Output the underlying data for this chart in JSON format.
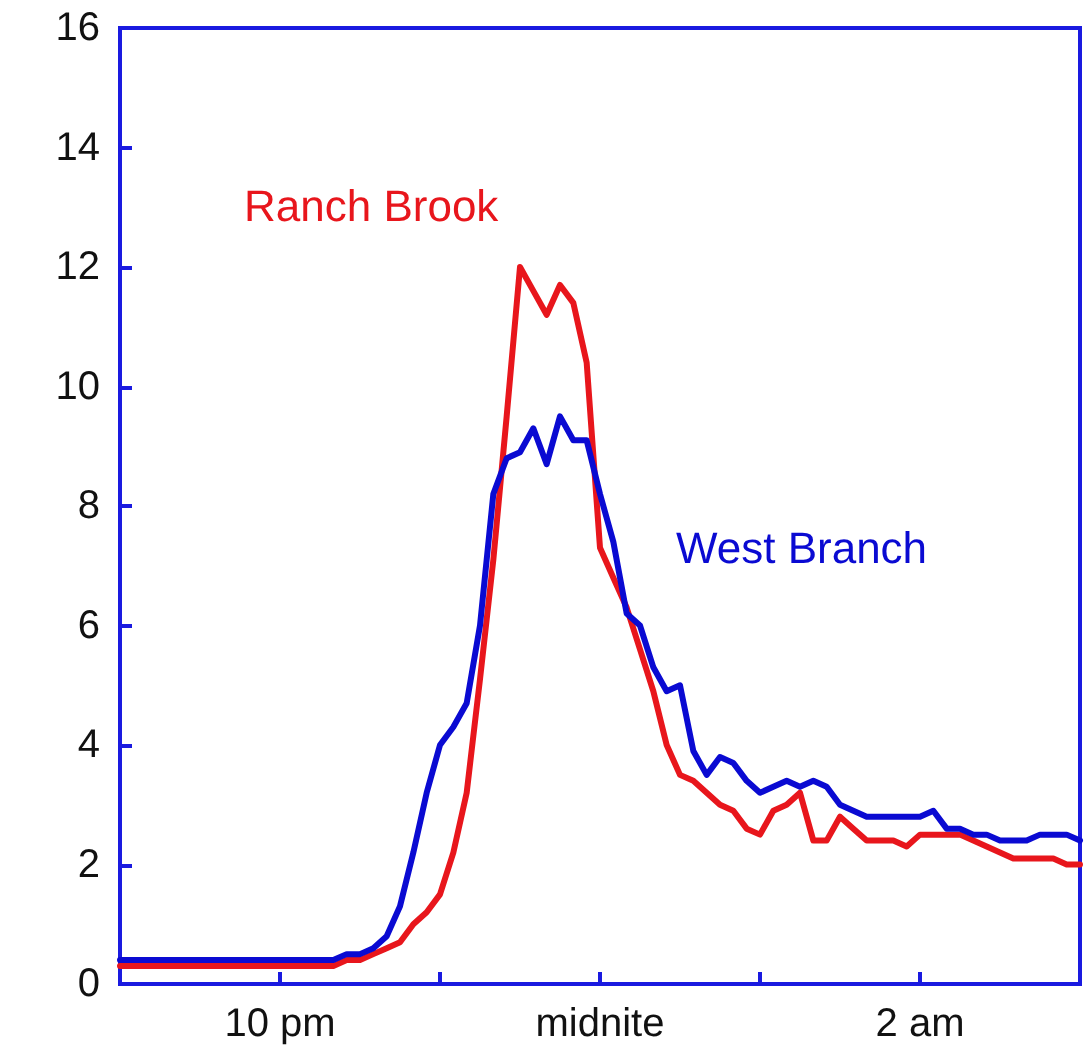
{
  "chart_data": {
    "type": "line",
    "categories": [
      null,
      null,
      null,
      null,
      null,
      null,
      null,
      null,
      null,
      null,
      null,
      null,
      "10 pm",
      null,
      null,
      null,
      null,
      null,
      null,
      null,
      null,
      null,
      null,
      null,
      null,
      null,
      null,
      null,
      null,
      null,
      null,
      null,
      null,
      null,
      null,
      null,
      "midnite",
      null,
      null,
      null,
      null,
      null,
      null,
      null,
      null,
      null,
      null,
      null,
      null,
      null,
      null,
      null,
      null,
      null,
      null,
      null,
      null,
      null,
      null,
      null,
      "2 am",
      null,
      null,
      null,
      null,
      null,
      null,
      null,
      null,
      null,
      null,
      null,
      null
    ],
    "ylim": [
      0,
      16
    ],
    "yticks": [
      0,
      2,
      4,
      6,
      8,
      10,
      12,
      14,
      16
    ],
    "grid": false,
    "legend": false,
    "marker": "none",
    "line_style": "solid",
    "series": [
      {
        "name": "Ranch Brook",
        "color": "#e8161c",
        "values": [
          0.3,
          0.3,
          0.3,
          0.3,
          0.3,
          0.3,
          0.3,
          0.3,
          0.3,
          0.3,
          0.3,
          0.3,
          0.3,
          0.3,
          0.3,
          0.3,
          0.3,
          0.4,
          0.4,
          0.5,
          0.6,
          0.7,
          1.0,
          1.2,
          1.5,
          2.2,
          3.2,
          5.1,
          7.1,
          9.5,
          12.0,
          11.6,
          11.2,
          11.7,
          11.4,
          10.4,
          7.3,
          6.8,
          6.3,
          5.6,
          4.9,
          4.0,
          3.5,
          3.4,
          3.2,
          3.0,
          2.9,
          2.6,
          2.5,
          2.9,
          3.0,
          3.2,
          2.4,
          2.4,
          2.8,
          2.6,
          2.4,
          2.4,
          2.4,
          2.3,
          2.5,
          2.5,
          2.5,
          2.5,
          2.4,
          2.3,
          2.2,
          2.1,
          2.1,
          2.1,
          2.1,
          2.0,
          2.0
        ]
      },
      {
        "name": "West Branch",
        "color": "#0a0ad2",
        "values": [
          0.4,
          0.4,
          0.4,
          0.4,
          0.4,
          0.4,
          0.4,
          0.4,
          0.4,
          0.4,
          0.4,
          0.4,
          0.4,
          0.4,
          0.4,
          0.4,
          0.4,
          0.5,
          0.5,
          0.6,
          0.8,
          1.3,
          2.2,
          3.2,
          4.0,
          4.3,
          4.7,
          6.0,
          8.2,
          8.8,
          8.9,
          9.3,
          8.7,
          9.5,
          9.1,
          9.1,
          8.2,
          7.4,
          6.2,
          6.0,
          5.3,
          4.9,
          5.0,
          3.9,
          3.5,
          3.8,
          3.7,
          3.4,
          3.2,
          3.3,
          3.4,
          3.3,
          3.4,
          3.3,
          3.0,
          2.9,
          2.8,
          2.8,
          2.8,
          2.8,
          2.8,
          2.9,
          2.6,
          2.6,
          2.5,
          2.5,
          2.4,
          2.4,
          2.4,
          2.5,
          2.5,
          2.5,
          2.4
        ]
      }
    ]
  }
}
